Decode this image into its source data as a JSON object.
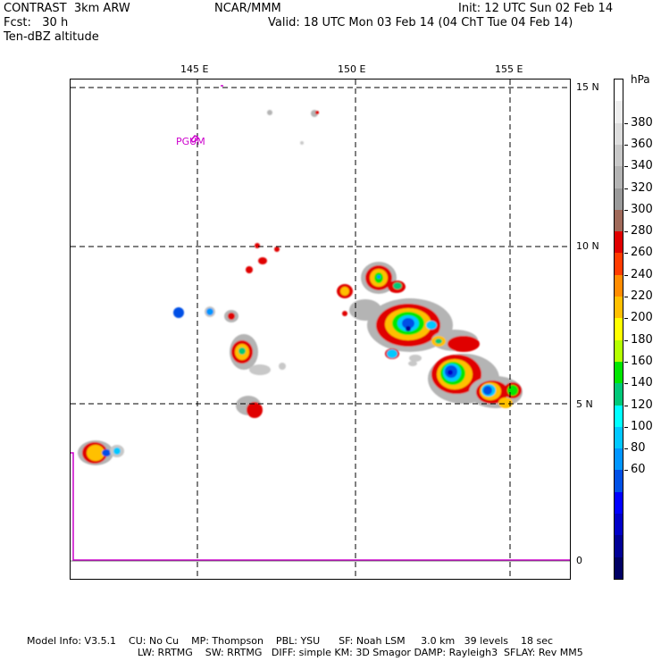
{
  "header": {
    "model": "CONTRAST  3km ARW",
    "forecast": "Fcst:   30 h",
    "field": "Ten-dBZ altitude",
    "center": "NCAR/MMM",
    "init": "Init: 12 UTC Sun 02 Feb 14",
    "valid": "Valid: 18 UTC Mon 03 Feb 14 (04 ChT Tue 04 Feb 14)"
  },
  "map": {
    "lon_labels": [
      "145 E",
      "150 E",
      "155 E"
    ],
    "lat_labels": [
      "15 N",
      "10 N",
      "5 N",
      "0"
    ],
    "station_label": "PGUM",
    "colors": {
      "coastline": "#cc00cc",
      "station": "#cc00cc",
      "gridline": "#000000"
    }
  },
  "colorbar": {
    "unit": "hPa",
    "labels": [
      "380",
      "360",
      "340",
      "320",
      "300",
      "280",
      "260",
      "240",
      "220",
      "200",
      "180",
      "160",
      "140",
      "120",
      "100",
      "80",
      "60"
    ],
    "colors": [
      "#ffffff",
      "#eeeeee",
      "#dddddd",
      "#c8c8c8",
      "#b4b4b4",
      "#9a9a9a",
      "#a06a5a",
      "#e00000",
      "#ff3c00",
      "#ff8c00",
      "#ffc000",
      "#ffff00",
      "#b4ff00",
      "#00e600",
      "#00c878",
      "#00ffff",
      "#00c8ff",
      "#0096ff",
      "#0050e6",
      "#0000ff",
      "#0000c8",
      "#000096",
      "#000064"
    ]
  },
  "footer": {
    "line1": "Model Info: V3.5.1    CU: No Cu    MP: Thompson    PBL: YSU      SF: Noah LSM     3.0 km   39 levels    18 sec",
    "line2": "LW: RRTMG    SW: RRTMG   DIFF: simple KM: 3D Smagor DAMP: Rayleigh3  SFLAY: Rev MM5"
  }
}
